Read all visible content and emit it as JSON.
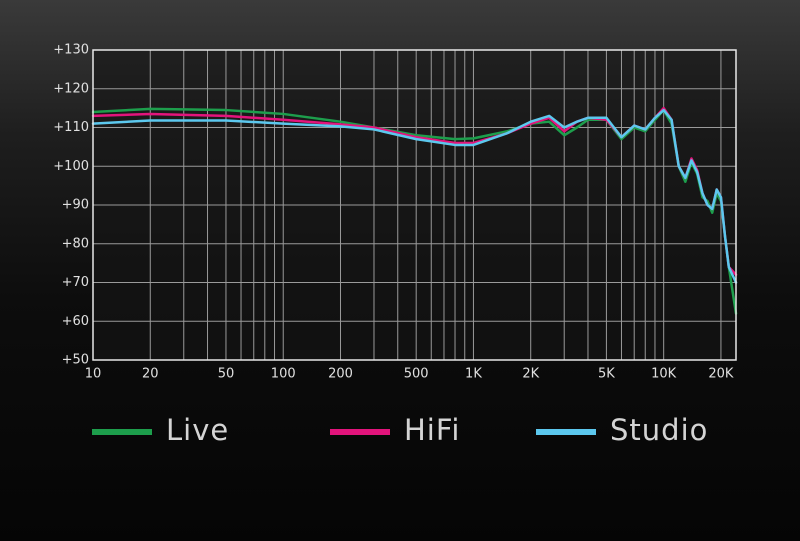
{
  "chart_data": {
    "type": "line",
    "log_x": true,
    "grid": true,
    "xlim": [
      10,
      24000
    ],
    "ylim": [
      50,
      130
    ],
    "xticks": [
      10,
      20,
      50,
      100,
      200,
      500,
      {
        "value": 1000,
        "label": "1K"
      },
      {
        "value": 2000,
        "label": "2K"
      },
      {
        "value": 5000,
        "label": "5K"
      },
      {
        "value": 10000,
        "label": "10K"
      },
      {
        "value": 20000,
        "label": "20K"
      }
    ],
    "xgrid": [
      10,
      20,
      30,
      40,
      50,
      60,
      70,
      80,
      90,
      100,
      200,
      300,
      400,
      500,
      600,
      700,
      800,
      900,
      1000,
      2000,
      3000,
      4000,
      5000,
      6000,
      7000,
      8000,
      9000,
      10000,
      20000
    ],
    "yticks": [
      {
        "value": 50,
        "label": "+50"
      },
      {
        "value": 60,
        "label": "+60"
      },
      {
        "value": 70,
        "label": "+70"
      },
      {
        "value": 80,
        "label": "+80"
      },
      {
        "value": 90,
        "label": "+90"
      },
      {
        "value": 100,
        "label": "+100"
      },
      {
        "value": 110,
        "label": "+110"
      },
      {
        "value": 120,
        "label": "+120"
      },
      {
        "value": 130,
        "label": "+130"
      }
    ],
    "legend": "bottom",
    "x": [
      10,
      20,
      50,
      100,
      200,
      300,
      500,
      800,
      1000,
      1500,
      2000,
      2500,
      3000,
      3500,
      4000,
      5000,
      6000,
      7000,
      8000,
      9000,
      10000,
      11000,
      12000,
      13000,
      14000,
      15000,
      16000,
      17000,
      18000,
      19000,
      20000,
      21000,
      22000,
      24000
    ],
    "series": [
      {
        "name": "Live",
        "color": "#1d9e4c",
        "values": [
          114,
          114.8,
          114.5,
          113.5,
          111.5,
          110,
          108,
          107,
          107.2,
          109,
          111,
          111.5,
          108,
          110,
          112,
          112,
          107,
          110,
          109,
          112,
          114.5,
          111,
          100,
          96,
          101,
          98,
          92,
          91,
          88,
          93,
          91,
          82,
          74,
          62
        ]
      },
      {
        "name": "HiFi",
        "color": "#e3147c",
        "values": [
          113,
          113.5,
          113,
          112,
          110.8,
          110,
          107.5,
          106,
          106,
          108.5,
          111,
          112.5,
          109,
          111.5,
          112.5,
          112,
          107.5,
          110.5,
          109.5,
          112.5,
          115,
          112,
          100,
          97,
          102,
          99,
          93,
          90,
          89,
          94,
          92,
          82,
          74,
          72
        ]
      },
      {
        "name": "Studio",
        "color": "#5cc8ee",
        "values": [
          111,
          111.8,
          111.8,
          111,
          110.3,
          109.5,
          107,
          105.5,
          105.5,
          108.5,
          111.5,
          113,
          110,
          111.5,
          112.5,
          112.5,
          107.5,
          110.5,
          109.5,
          112.5,
          114.5,
          112,
          100,
          97,
          101.5,
          98.5,
          93,
          90,
          89,
          94,
          92,
          82,
          74,
          70
        ]
      }
    ]
  }
}
